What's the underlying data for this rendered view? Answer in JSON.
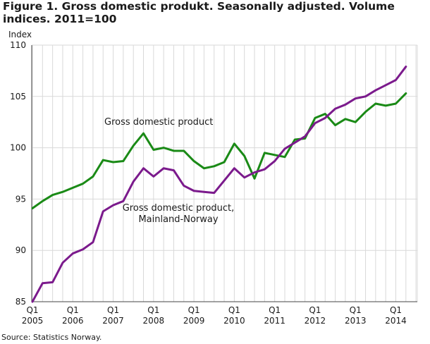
{
  "chart_data": {
    "type": "line",
    "title": "Figure 1. Gross domestic produkt. Seasonally adjusted. Volume indices. 2011=100",
    "ylabel": "Index",
    "xlabel": "",
    "ylim": [
      85,
      110
    ],
    "yticks": [
      85,
      90,
      95,
      100,
      105,
      110
    ],
    "grid": true,
    "x": [
      "2005Q1",
      "2005Q2",
      "2005Q3",
      "2005Q4",
      "2006Q1",
      "2006Q2",
      "2006Q3",
      "2006Q4",
      "2007Q1",
      "2007Q2",
      "2007Q3",
      "2007Q4",
      "2008Q1",
      "2008Q2",
      "2008Q3",
      "2008Q4",
      "2009Q1",
      "2009Q2",
      "2009Q3",
      "2009Q4",
      "2010Q1",
      "2010Q2",
      "2010Q3",
      "2010Q4",
      "2011Q1",
      "2011Q2",
      "2011Q3",
      "2011Q4",
      "2012Q1",
      "2012Q2",
      "2012Q3",
      "2012Q4",
      "2013Q1",
      "2013Q2",
      "2013Q3",
      "2013Q4",
      "2014Q1",
      "2014Q2"
    ],
    "xtick_labels": [
      {
        "q": "Q1",
        "year": "2005"
      },
      {
        "q": "Q1",
        "year": "2006"
      },
      {
        "q": "Q1",
        "year": "2007"
      },
      {
        "q": "Q1",
        "year": "2008"
      },
      {
        "q": "Q1",
        "year": "2009"
      },
      {
        "q": "Q1",
        "year": "2010"
      },
      {
        "q": "Q1",
        "year": "2011"
      },
      {
        "q": "Q1",
        "year": "2012"
      },
      {
        "q": "Q1",
        "year": "2013"
      },
      {
        "q": "Q1",
        "year": "2014"
      }
    ],
    "series": [
      {
        "name": "Gross domestic product",
        "color": "#1a8a16",
        "values": [
          94.1,
          94.8,
          95.4,
          95.7,
          96.1,
          96.5,
          97.2,
          98.8,
          98.6,
          98.7,
          100.2,
          101.4,
          99.8,
          100.0,
          99.7,
          99.7,
          98.7,
          98.0,
          98.2,
          98.6,
          100.4,
          99.2,
          97.0,
          99.5,
          99.3,
          99.1,
          100.8,
          100.9,
          102.9,
          103.3,
          102.2,
          102.8,
          102.5,
          103.5,
          104.3,
          104.1,
          104.3,
          105.3
        ]
      },
      {
        "name": "Gross domestic product, Mainland-Norway",
        "color": "#7b1a8c",
        "values": [
          85.0,
          86.8,
          86.9,
          88.8,
          89.7,
          90.1,
          90.8,
          93.8,
          94.4,
          94.8,
          96.7,
          98.0,
          97.2,
          98.0,
          97.8,
          96.3,
          95.8,
          95.7,
          95.6,
          96.8,
          98.0,
          97.1,
          97.6,
          97.9,
          98.7,
          99.9,
          100.5,
          101.1,
          102.4,
          102.9,
          103.8,
          104.2,
          104.8,
          105.0,
          105.6,
          106.1,
          106.6,
          107.9
        ]
      }
    ],
    "annotations": [
      {
        "series": 0,
        "lines": [
          "Gross domestic product"
        ]
      },
      {
        "series": 1,
        "lines": [
          "Gross domestic product,",
          "Mainland-Norway"
        ]
      }
    ]
  },
  "source": "Source: Statistics Norway."
}
